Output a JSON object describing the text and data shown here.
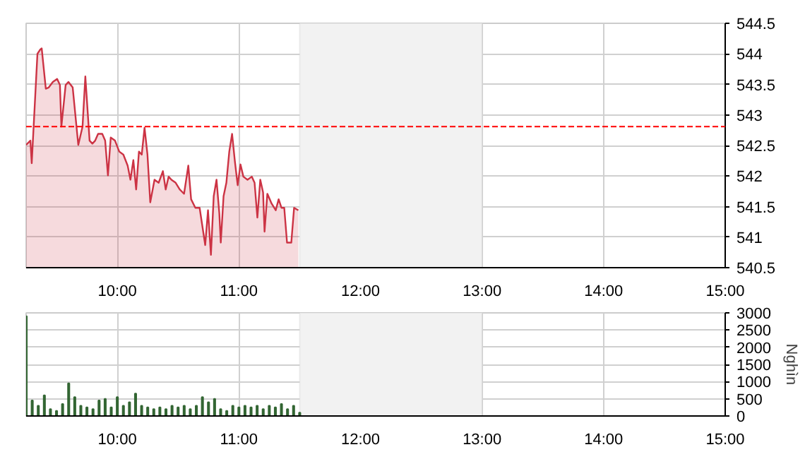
{
  "chart_data": [
    {
      "type": "area",
      "x": [
        9.25,
        9.285,
        9.296,
        9.343,
        9.366,
        9.378,
        9.412,
        9.436,
        9.47,
        9.505,
        9.528,
        9.54,
        9.575,
        9.598,
        9.633,
        9.679,
        9.714,
        9.737,
        9.772,
        9.795,
        9.818,
        9.842,
        9.876,
        9.9,
        9.923,
        9.946,
        9.981,
        10.016,
        10.05,
        10.085,
        10.108,
        10.132,
        10.155,
        10.178,
        10.201,
        10.224,
        10.248,
        10.271,
        10.306,
        10.34,
        10.375,
        10.398,
        10.422,
        10.445,
        10.48,
        10.514,
        10.549,
        10.584,
        10.607,
        10.642,
        10.677,
        10.723,
        10.746,
        10.77,
        10.793,
        10.816,
        10.839,
        10.851,
        10.874,
        10.897,
        10.921,
        10.944,
        10.967,
        10.99,
        11.013,
        11.037,
        11.071,
        11.106,
        11.129,
        11.152,
        11.176,
        11.199,
        11.211,
        11.234,
        11.269,
        11.303,
        11.327,
        11.35,
        11.373,
        11.396,
        11.431,
        11.454,
        11.489
      ],
      "series": [
        {
          "color": "#cc3344",
          "values": [
            542.51,
            542.58,
            542.21,
            544.0,
            544.07,
            544.09,
            543.43,
            543.45,
            543.54,
            543.59,
            543.49,
            542.81,
            543.49,
            543.54,
            543.45,
            542.51,
            542.81,
            543.63,
            542.58,
            542.53,
            542.58,
            542.69,
            542.69,
            542.58,
            542.01,
            542.63,
            542.58,
            542.4,
            542.35,
            542.17,
            541.94,
            542.26,
            541.78,
            542.4,
            542.35,
            542.79,
            542.35,
            541.57,
            541.94,
            541.89,
            542.08,
            541.78,
            541.99,
            541.94,
            541.89,
            541.78,
            541.71,
            542.17,
            541.62,
            541.48,
            541.48,
            540.87,
            541.44,
            540.71,
            541.67,
            541.94,
            541.39,
            540.91,
            541.67,
            541.89,
            542.4,
            542.69,
            542.24,
            541.85,
            542.19,
            541.99,
            541.94,
            541.99,
            541.89,
            541.32,
            541.94,
            541.73,
            541.09,
            541.71,
            541.55,
            541.44,
            541.62,
            541.48,
            541.48,
            540.91,
            540.91,
            541.48,
            541.44
          ]
        }
      ],
      "xlim": [
        9.25,
        15
      ],
      "xticks": [
        {
          "value": 10,
          "label": "10:00"
        },
        {
          "value": 11,
          "label": "11:00"
        },
        {
          "value": 12,
          "label": "12:00"
        },
        {
          "value": 13,
          "label": "13:00"
        },
        {
          "value": 14,
          "label": "14:00"
        },
        {
          "value": 15,
          "label": "15:00"
        }
      ],
      "ylim": [
        540.5,
        544.5
      ],
      "yticks": [
        540.5,
        541,
        541.5,
        542,
        542.5,
        543,
        543.5,
        544,
        544.5
      ],
      "ref_lines": [
        {
          "axis": "y",
          "value": 542.81,
          "color": "#ff0000",
          "line_style": "dashed"
        }
      ],
      "bands": [
        {
          "axis": "x",
          "from": 11.5,
          "to": 13,
          "color": "#f2f2f2"
        }
      ],
      "grid": true
    },
    {
      "type": "bar",
      "ylabel": "Nghìn",
      "x": [
        9.25,
        9.3,
        9.35,
        9.4,
        9.45,
        9.5,
        9.55,
        9.6,
        9.65,
        9.7,
        9.75,
        9.8,
        9.85,
        9.9,
        9.95,
        10.0,
        10.05,
        10.1,
        10.15,
        10.2,
        10.25,
        10.3,
        10.35,
        10.4,
        10.45,
        10.5,
        10.55,
        10.6,
        10.65,
        10.7,
        10.75,
        10.8,
        10.85,
        10.9,
        10.95,
        11.0,
        11.05,
        11.1,
        11.15,
        11.2,
        11.25,
        11.3,
        11.35,
        11.4,
        11.45,
        11.5
      ],
      "series": [
        {
          "color": "#336633",
          "values": [
            2900,
            450,
            300,
            600,
            200,
            150,
            350,
            950,
            550,
            300,
            250,
            200,
            450,
            500,
            250,
            550,
            300,
            400,
            650,
            300,
            250,
            200,
            250,
            200,
            300,
            250,
            300,
            200,
            300,
            550,
            400,
            500,
            200,
            150,
            300,
            250,
            300,
            250,
            300,
            200,
            300,
            250,
            350,
            200,
            300,
            100
          ]
        }
      ],
      "xlim": [
        9.25,
        15
      ],
      "xticks": [
        {
          "value": 10,
          "label": "10:00"
        },
        {
          "value": 11,
          "label": "11:00"
        },
        {
          "value": 12,
          "label": "12:00"
        },
        {
          "value": 13,
          "label": "13:00"
        },
        {
          "value": 14,
          "label": "14:00"
        },
        {
          "value": 15,
          "label": "15:00"
        }
      ],
      "ylim": [
        0,
        3000
      ],
      "yticks": [
        0,
        500,
        1000,
        1500,
        2000,
        2500,
        3000
      ],
      "bands": [
        {
          "axis": "x",
          "from": 11.5,
          "to": 13,
          "color": "#f2f2f2"
        }
      ],
      "grid": true
    }
  ]
}
